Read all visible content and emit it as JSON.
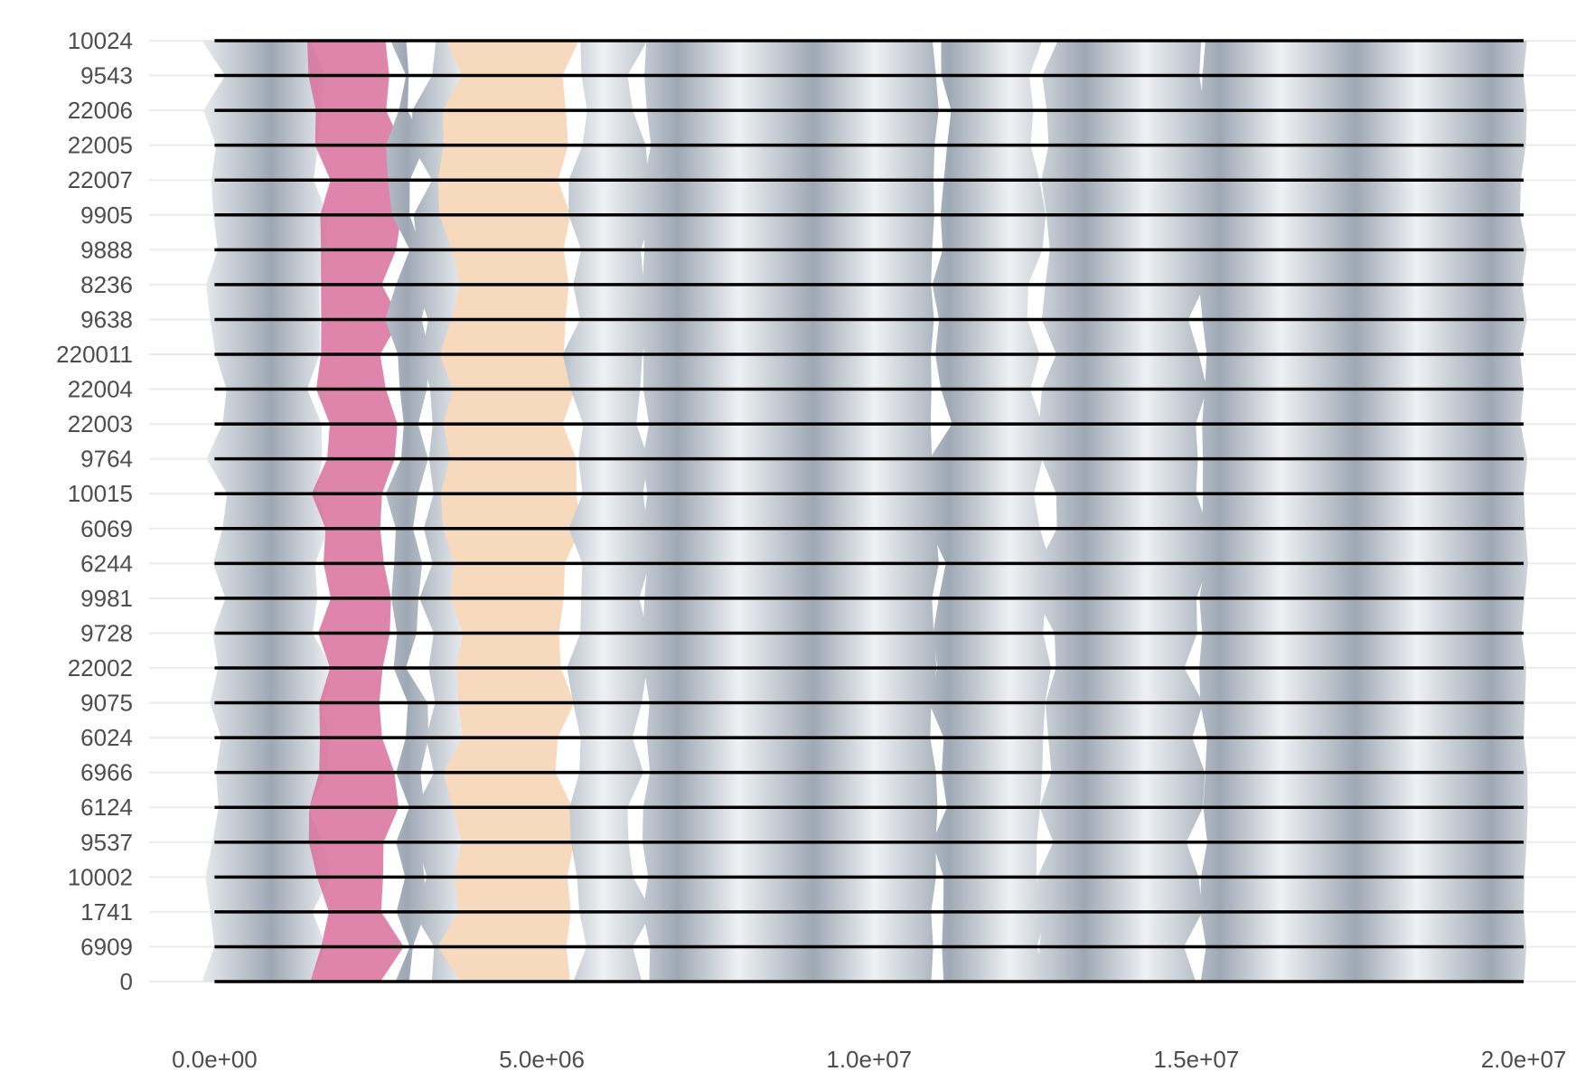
{
  "chart_data": {
    "type": "synteny",
    "title": "",
    "xlabel": "",
    "ylabel": "",
    "grid": true,
    "legend": "none",
    "x_ticks": [
      0,
      5000000,
      10000000,
      15000000,
      20000000
    ],
    "x_tick_labels": [
      "0.0e+00",
      "5.0e+06",
      "1.0e+07",
      "1.5e+07",
      "2.0e+07"
    ],
    "xlim": [
      -1000000,
      20800000
    ],
    "chromosome_start": 0,
    "chromosome_end": 20000000,
    "colors": {
      "conserved": "#aab4bf",
      "conserved_light": "#eef1f4",
      "inversion": "#d9709c",
      "inversion_dark": "#c2477c",
      "other": "#f7d9bd",
      "chromosome": "#000000",
      "grid": "#ebebeb"
    },
    "genomes": [
      "10024",
      "9543",
      "22006",
      "22005",
      "22007",
      "9905",
      "9888",
      "8236",
      "9638",
      "220011",
      "22004",
      "22003",
      "9764",
      "10015",
      "6069",
      "6244",
      "9981",
      "9728",
      "22002",
      "9075",
      "6024",
      "6966",
      "6124",
      "9537",
      "10002",
      "1741",
      "6909",
      "0"
    ],
    "blocks": [
      {
        "type": "conserved",
        "start": 0,
        "end": 1600000
      },
      {
        "type": "inversion",
        "start": 1600000,
        "end": 2700000
      },
      {
        "type": "conserved",
        "start": 2800000,
        "end": 3100000
      },
      {
        "type": "conserved",
        "start": 3200000,
        "end": 4200000
      },
      {
        "type": "other",
        "start": 3600000,
        "end": 5400000
      },
      {
        "type": "conserved",
        "start": 5500000,
        "end": 6500000
      },
      {
        "type": "conserved",
        "start": 6600000,
        "end": 11000000
      },
      {
        "type": "conserved",
        "start": 11100000,
        "end": 12600000
      },
      {
        "type": "conserved",
        "start": 12700000,
        "end": 15000000
      },
      {
        "type": "conserved",
        "start": 15100000,
        "end": 20000000
      }
    ]
  }
}
